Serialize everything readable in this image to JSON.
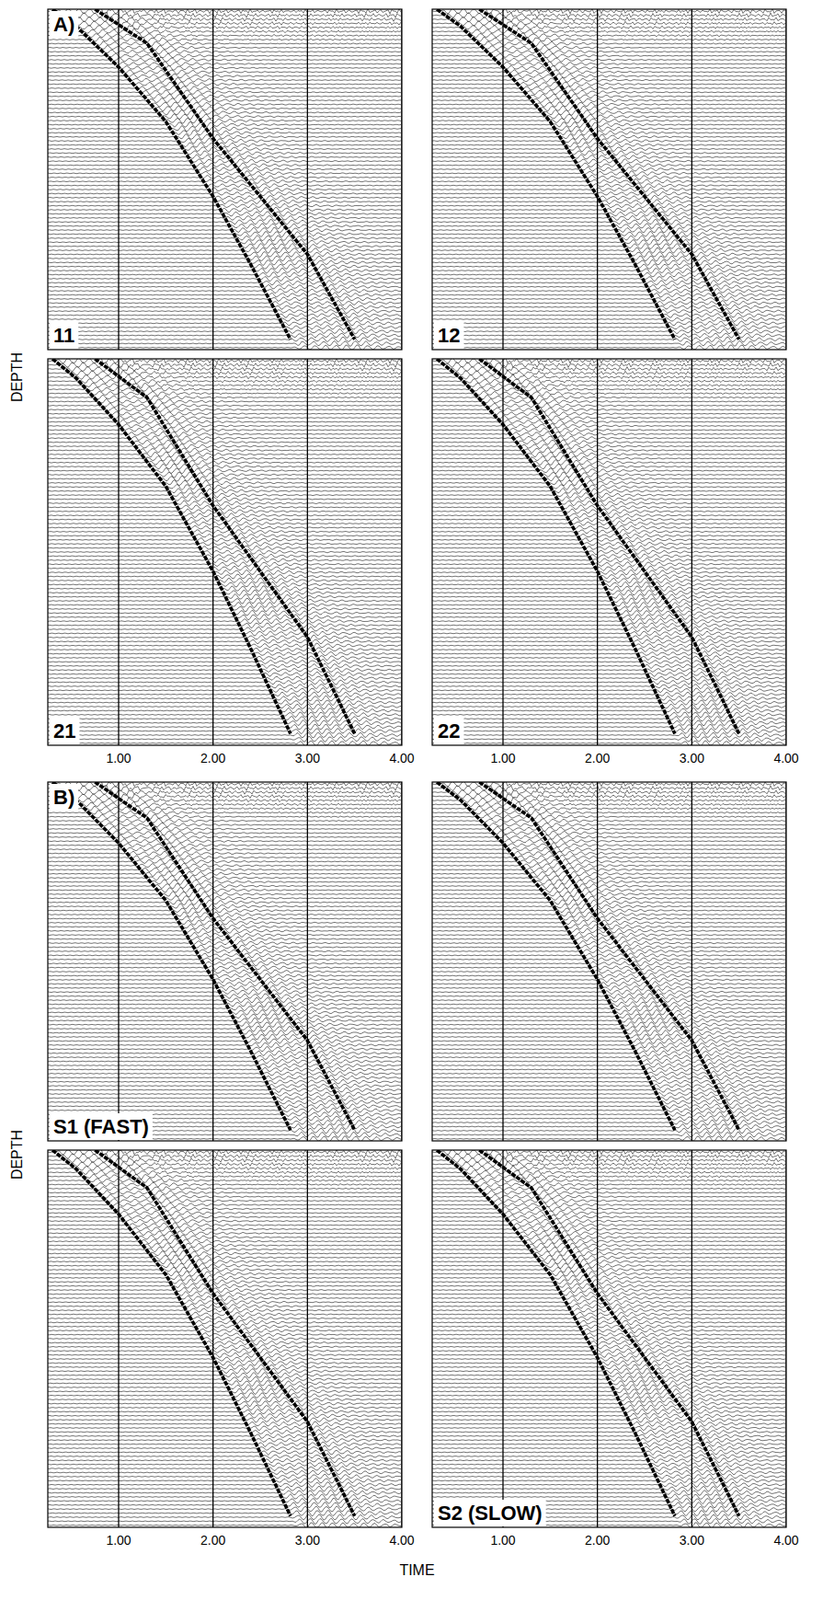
{
  "labels": {
    "x_label": "TIME",
    "y_labels": [
      "DEPTH",
      "DEPTH"
    ],
    "letters": [
      "A)",
      "B)"
    ]
  },
  "chart_data": [
    {
      "type": "line",
      "title": "11",
      "xlim": [
        0.25,
        4
      ],
      "xticks": [
        1,
        2,
        3,
        4
      ],
      "ylim": [
        0,
        100
      ],
      "tick_labels": false,
      "grid": true,
      "series": [
        {
          "color": "#000000",
          "x": [
            0.3,
            0.55,
            1.0,
            1.5,
            2.0,
            2.4,
            2.82
          ],
          "values": [
            0,
            5,
            17,
            33,
            55,
            75,
            97
          ]
        },
        {
          "color": "#000000",
          "x": [
            0.75,
            1.3,
            2.0,
            2.5,
            3.0,
            3.5
          ],
          "values": [
            0,
            10,
            38,
            55,
            72,
            97
          ]
        }
      ]
    },
    {
      "type": "line",
      "title": "12",
      "xlim": [
        0.25,
        4
      ],
      "xticks": [
        1,
        2,
        3,
        4
      ],
      "ylim": [
        0,
        100
      ],
      "tick_labels": false,
      "grid": true,
      "series": [
        {
          "color": "#000000",
          "x": [
            0.3,
            0.55,
            1.0,
            1.5,
            2.0,
            2.4,
            2.82
          ],
          "values": [
            0,
            5,
            17,
            33,
            55,
            75,
            97
          ]
        },
        {
          "color": "#000000",
          "x": [
            0.75,
            1.3,
            2.0,
            2.5,
            3.0,
            3.5
          ],
          "values": [
            0,
            10,
            38,
            55,
            72,
            97
          ]
        }
      ]
    },
    {
      "type": "line",
      "title": "21",
      "xlim": [
        0.25,
        4
      ],
      "xticks": [
        {
          "value": 1,
          "label": "1.00"
        },
        {
          "value": 2,
          "label": "2.00"
        },
        {
          "value": 3,
          "label": "3.00"
        },
        {
          "value": 4,
          "label": "4.00"
        }
      ],
      "ylim": [
        0,
        100
      ],
      "tick_labels": "x",
      "grid": true,
      "series": [
        {
          "color": "#000000",
          "x": [
            0.3,
            0.55,
            1.0,
            1.5,
            2.0,
            2.4,
            2.82
          ],
          "values": [
            0,
            5,
            17,
            33,
            55,
            75,
            97
          ]
        },
        {
          "color": "#000000",
          "x": [
            0.75,
            1.3,
            2.0,
            2.5,
            3.0,
            3.5
          ],
          "values": [
            0,
            10,
            38,
            55,
            72,
            97
          ]
        }
      ]
    },
    {
      "type": "line",
      "title": "22",
      "xlim": [
        0.25,
        4
      ],
      "xticks": [
        {
          "value": 1,
          "label": "1.00"
        },
        {
          "value": 2,
          "label": "2.00"
        },
        {
          "value": 3,
          "label": "3.00"
        },
        {
          "value": 4,
          "label": "4.00"
        }
      ],
      "ylim": [
        0,
        100
      ],
      "tick_labels": "x",
      "grid": true,
      "series": [
        {
          "color": "#000000",
          "x": [
            0.3,
            0.55,
            1.0,
            1.5,
            2.0,
            2.4,
            2.82
          ],
          "values": [
            0,
            5,
            17,
            33,
            55,
            75,
            97
          ]
        },
        {
          "color": "#000000",
          "x": [
            0.75,
            1.3,
            2.0,
            2.5,
            3.0,
            3.5
          ],
          "values": [
            0,
            10,
            38,
            55,
            72,
            97
          ]
        }
      ]
    },
    {
      "type": "line",
      "title": "S1 (FAST)",
      "xlim": [
        0.25,
        4
      ],
      "xticks": [
        1,
        2,
        3,
        4
      ],
      "ylim": [
        0,
        100
      ],
      "tick_labels": false,
      "grid": true,
      "series": [
        {
          "color": "#000000",
          "x": [
            0.3,
            0.55,
            1.0,
            1.5,
            2.0,
            2.4,
            2.82
          ],
          "values": [
            0,
            5,
            17,
            33,
            55,
            75,
            97
          ]
        },
        {
          "color": "#000000",
          "x": [
            0.75,
            1.3,
            2.0,
            2.5,
            3.0,
            3.5
          ],
          "values": [
            0,
            10,
            38,
            55,
            72,
            97
          ]
        }
      ]
    },
    {
      "type": "line",
      "xlim": [
        0.25,
        4
      ],
      "xticks": [
        1,
        2,
        3,
        4
      ],
      "ylim": [
        0,
        100
      ],
      "tick_labels": false,
      "grid": true,
      "series": [
        {
          "color": "#000000",
          "x": [
            0.3,
            0.55,
            1.0,
            1.5,
            2.0,
            2.4,
            2.82
          ],
          "values": [
            0,
            5,
            17,
            33,
            55,
            75,
            97
          ]
        },
        {
          "color": "#000000",
          "x": [
            0.75,
            1.3,
            2.0,
            2.5,
            3.0,
            3.5
          ],
          "values": [
            0,
            10,
            38,
            55,
            72,
            97
          ]
        }
      ]
    },
    {
      "type": "line",
      "xlim": [
        0.25,
        4
      ],
      "xticks": [
        {
          "value": 1,
          "label": "1.00"
        },
        {
          "value": 2,
          "label": "2.00"
        },
        {
          "value": 3,
          "label": "3.00"
        },
        {
          "value": 4,
          "label": "4.00"
        }
      ],
      "ylim": [
        0,
        100
      ],
      "tick_labels": "x",
      "grid": true,
      "series": [
        {
          "color": "#000000",
          "x": [
            0.3,
            0.55,
            1.0,
            1.5,
            2.0,
            2.4,
            2.82
          ],
          "values": [
            0,
            5,
            17,
            33,
            55,
            75,
            97
          ]
        },
        {
          "color": "#000000",
          "x": [
            0.75,
            1.3,
            2.0,
            2.5,
            3.0,
            3.5
          ],
          "values": [
            0,
            10,
            38,
            55,
            72,
            97
          ]
        }
      ]
    },
    {
      "type": "line",
      "title": "S2 (SLOW)",
      "xlim": [
        0.25,
        4
      ],
      "xticks": [
        {
          "value": 1,
          "label": "1.00"
        },
        {
          "value": 2,
          "label": "2.00"
        },
        {
          "value": 3,
          "label": "3.00"
        },
        {
          "value": 4,
          "label": "4.00"
        }
      ],
      "ylim": [
        0,
        100
      ],
      "tick_labels": "x",
      "grid": true,
      "series": [
        {
          "color": "#000000",
          "x": [
            0.3,
            0.55,
            1.0,
            1.5,
            2.0,
            2.4,
            2.82
          ],
          "values": [
            0,
            5,
            17,
            33,
            55,
            75,
            97
          ]
        },
        {
          "color": "#000000",
          "x": [
            0.75,
            1.3,
            2.0,
            2.5,
            3.0,
            3.5
          ],
          "values": [
            0,
            10,
            38,
            55,
            72,
            97
          ]
        }
      ]
    }
  ]
}
